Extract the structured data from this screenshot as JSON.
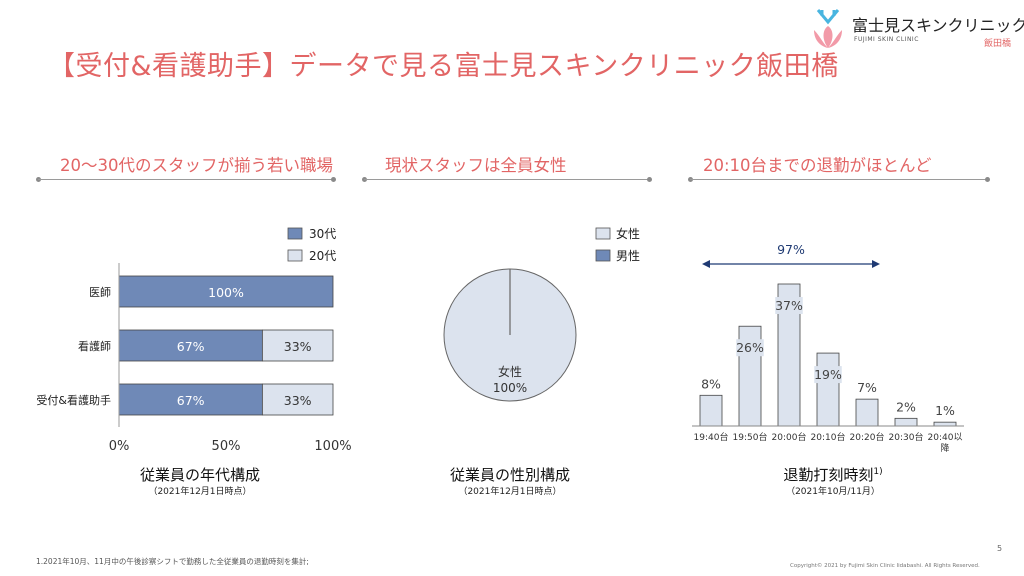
{
  "header": {
    "title": "【受付&看護助手】データで見る富士見スキンクリニック飯田橋",
    "logo_name": "富士見スキンクリニック",
    "logo_sub": "FUJIMI SKIN CLINIC",
    "logo_branch": "飯田橋"
  },
  "sections": [
    {
      "heading": "20〜30代のスタッフが揃う若い職場",
      "caption": "従業員の年代構成",
      "subcaption": "（2021年12月1日時点）"
    },
    {
      "heading": "現状スタッフは全員女性",
      "caption": "従業員の性別構成",
      "subcaption": "（2021年12月1日時点）"
    },
    {
      "heading": "20:10台までの退勤がほとんど",
      "caption": "退勤打刻時刻",
      "caption_sup": "1)",
      "subcaption": "（2021年10月/11月）"
    }
  ],
  "chart_data": [
    {
      "type": "bar",
      "orientation": "horizontal",
      "stacked": true,
      "categories": [
        "医師",
        "看護師",
        "受付&看護助手"
      ],
      "series": [
        {
          "name": "30代",
          "values": [
            100,
            67,
            67
          ],
          "labels": [
            "100%",
            "67%",
            "67%"
          ],
          "color": "#6f89b7"
        },
        {
          "name": "20代",
          "values": [
            0,
            33,
            33
          ],
          "labels": [
            "",
            "33%",
            "33%"
          ],
          "color": "#dce3ee"
        }
      ],
      "xlim": [
        0,
        100
      ],
      "xticks": [
        "0%",
        "50%",
        "100%"
      ],
      "legend": "top-right"
    },
    {
      "type": "pie",
      "slices": [
        {
          "name": "女性",
          "value": 100,
          "label": "女性",
          "pct_label": "100%",
          "color": "#dce3ee"
        },
        {
          "name": "男性",
          "value": 0,
          "color": "#6f89b7"
        }
      ],
      "legend": "top-right"
    },
    {
      "type": "bar",
      "categories": [
        "19:40台",
        "19:50台",
        "20:00台",
        "20:10台",
        "20:20台",
        "20:30台",
        "20:40以降"
      ],
      "values": [
        8,
        26,
        37,
        19,
        7,
        2,
        1
      ],
      "labels": [
        "8%",
        "26%",
        "37%",
        "19%",
        "7%",
        "2%",
        "1%"
      ],
      "bar_color": "#dce3ee",
      "annotation": {
        "text": "97%",
        "from_category": "19:40台",
        "to_category": "20:20台",
        "color": "#1f3a73"
      }
    }
  ],
  "footer": {
    "footnote": "1.2021年10月、11月中の午後診察シフトで勤務した全従業員の退勤時刻を集計;",
    "copyright": "Copyright© 2021 by Fujimi Skin Clinic Iidabashi. All Rights Reserved.",
    "page_number": "5"
  }
}
